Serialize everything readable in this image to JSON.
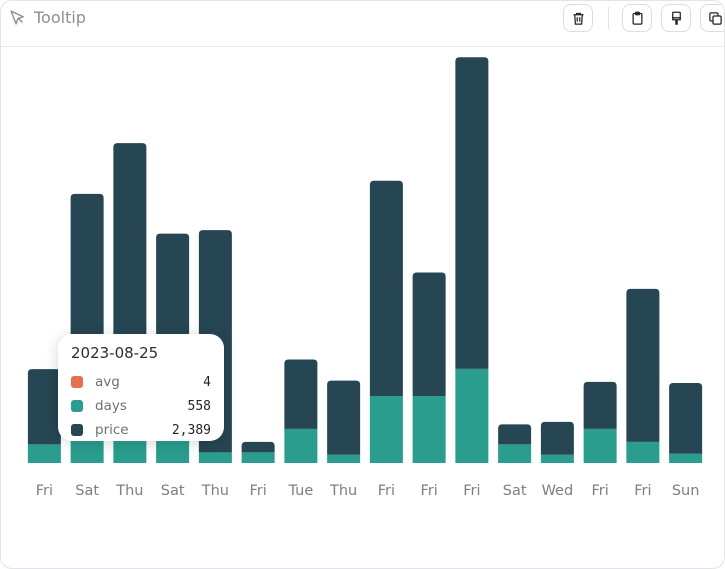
{
  "header": {
    "title": "Tooltip"
  },
  "toolbar": {
    "buttons": [
      "trash-icon",
      "clipboard-icon",
      "paintbrush-icon",
      "copy-icon"
    ]
  },
  "colors": {
    "avg": "#e76f51",
    "days": "#2a9d8f",
    "price": "#264653"
  },
  "tooltip": {
    "date": "2023-08-25",
    "rows": [
      {
        "name": "avg",
        "value": "4"
      },
      {
        "name": "days",
        "value": "558"
      },
      {
        "name": "price",
        "value": "2,389"
      }
    ]
  },
  "chart_data": {
    "type": "bar",
    "stacked": true,
    "categories": [
      "Fri",
      "Sat",
      "Thu",
      "Sat",
      "Thu",
      "Fri",
      "Tue",
      "Thu",
      "Fri",
      "Fri",
      "Fri",
      "Sat",
      "Wed",
      "Fri",
      "Fri",
      "Sun"
    ],
    "series": [
      {
        "name": "avg",
        "values": [
          0,
          0,
          0,
          0,
          0,
          0,
          0,
          0,
          0,
          0,
          0,
          0,
          0,
          0,
          0,
          0
        ]
      },
      {
        "name": "days",
        "values": [
          158,
          558,
          330,
          300,
          90,
          90,
          290,
          70,
          570,
          570,
          800,
          158,
          70,
          290,
          180,
          80
        ]
      },
      {
        "name": "price",
        "values": [
          640,
          1730,
          2390,
          1650,
          1890,
          90,
          590,
          630,
          1830,
          1050,
          2650,
          170,
          280,
          400,
          1300,
          600
        ]
      }
    ],
    "ylim": [
      0,
      3520
    ],
    "grid": false,
    "legend": "none"
  }
}
